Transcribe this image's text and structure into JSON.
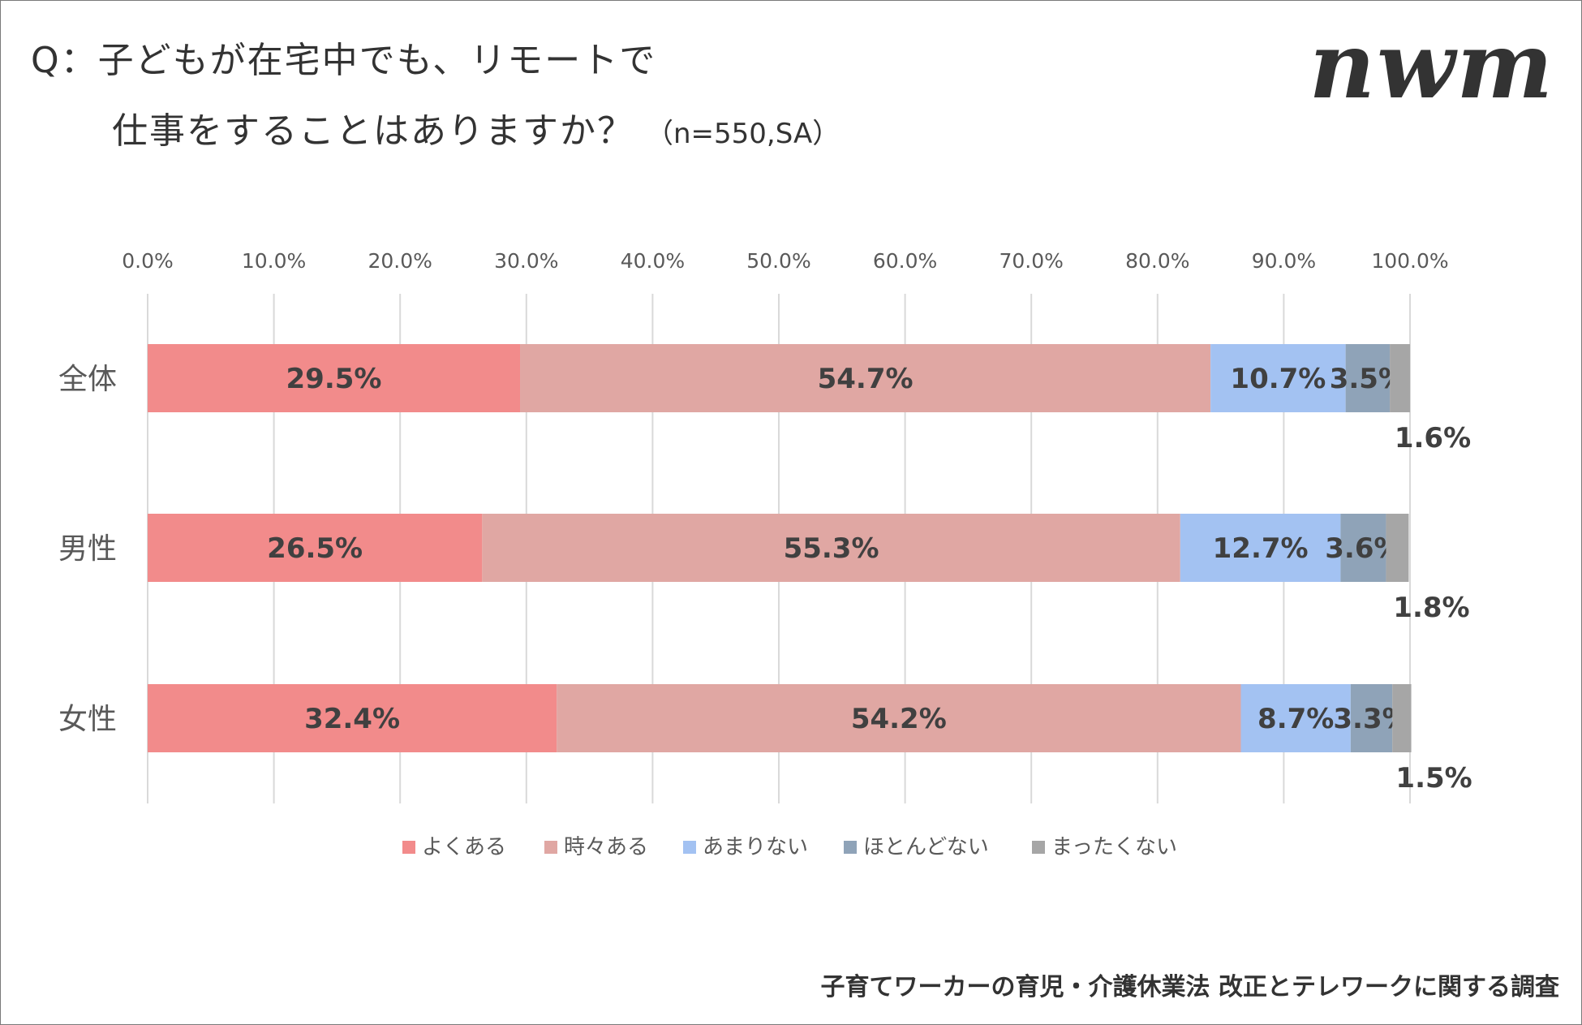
{
  "title": {
    "line1": "Q：子どもが在宅中でも、リモートで",
    "line2": "仕事をすることはありますか？",
    "note": "（n=550,SA）"
  },
  "logo_text": "nwm",
  "footer": "子育てワーカーの育児・介護休業法 改正とテレワークに関する調査",
  "chart_data": {
    "type": "bar",
    "orientation": "horizontal",
    "stacked": true,
    "categories": [
      "全体",
      "男性",
      "女性"
    ],
    "series": [
      {
        "name": "よくある",
        "color": "#f28b8b",
        "values": [
          29.5,
          26.5,
          32.4
        ]
      },
      {
        "name": "時々ある",
        "color": "#e0a7a3",
        "values": [
          54.7,
          55.3,
          54.2
        ]
      },
      {
        "name": "あまりない",
        "color": "#a3c2f2",
        "values": [
          10.7,
          12.7,
          8.7
        ]
      },
      {
        "name": "ほとんどない",
        "color": "#8fa3b8",
        "values": [
          3.5,
          3.6,
          3.3
        ]
      },
      {
        "name": "まったくない",
        "color": "#a6a6a6",
        "values": [
          1.6,
          1.8,
          1.5
        ]
      }
    ],
    "xlim": [
      0,
      100
    ],
    "xticks": [
      0,
      10,
      20,
      30,
      40,
      50,
      60,
      70,
      80,
      90,
      100
    ],
    "xtick_labels": [
      "0.0%",
      "10.0%",
      "20.0%",
      "30.0%",
      "40.0%",
      "50.0%",
      "60.0%",
      "70.0%",
      "80.0%",
      "90.0%",
      "100.0%"
    ],
    "axis_position": "top",
    "grid": true,
    "legend": "bottom",
    "value_label_suffix": "%"
  }
}
